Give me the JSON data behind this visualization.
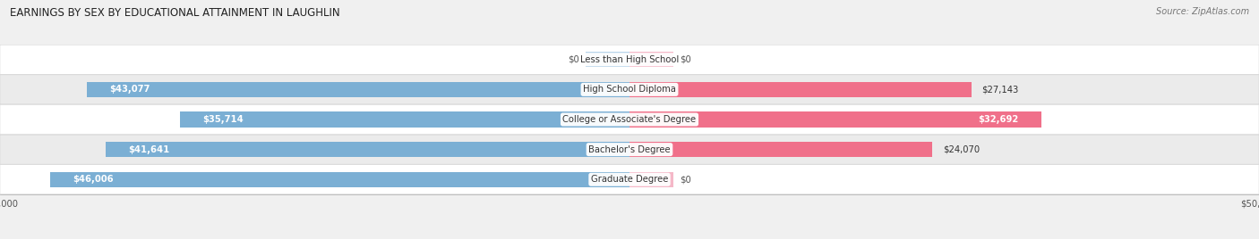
{
  "title": "EARNINGS BY SEX BY EDUCATIONAL ATTAINMENT IN LAUGHLIN",
  "source": "Source: ZipAtlas.com",
  "categories": [
    "Less than High School",
    "High School Diploma",
    "College or Associate's Degree",
    "Bachelor's Degree",
    "Graduate Degree"
  ],
  "male_values": [
    0,
    43077,
    35714,
    41641,
    46006
  ],
  "female_values": [
    0,
    27143,
    32692,
    24070,
    0
  ],
  "male_color": "#7BAFD4",
  "female_color": "#F0708A",
  "male_color_zero": "#B8D4EA",
  "female_color_zero": "#F5B8C8",
  "max_value": 50000,
  "bar_height": 0.52,
  "row_bg": "#f0f0f0",
  "row_stripe1": "#ffffff",
  "row_stripe2": "#ebebeb",
  "title_fontsize": 8.5,
  "label_fontsize": 7.2,
  "value_fontsize": 7.2,
  "tick_fontsize": 7.2,
  "source_fontsize": 7
}
